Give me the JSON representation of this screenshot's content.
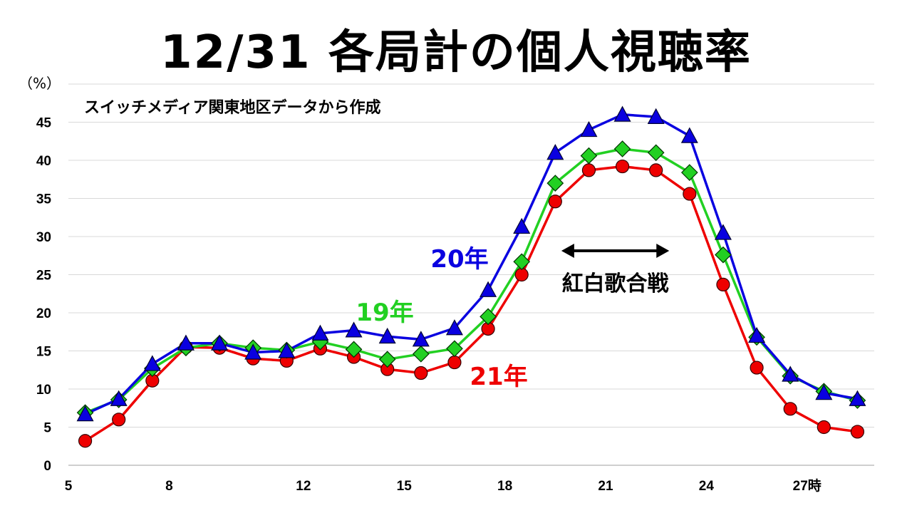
{
  "title": "12/31 各局計の個人視聴率",
  "unit": "（%）",
  "source": "スイッチメディア関東地区データから作成",
  "chart_data": {
    "type": "line",
    "x": [
      5.5,
      6.5,
      7.5,
      8.5,
      9.5,
      10.5,
      11.5,
      12.5,
      13.5,
      14.5,
      15.5,
      16.5,
      17.5,
      18.5,
      19.5,
      20.5,
      21.5,
      22.5,
      23.5,
      24.5,
      25.5,
      26.5,
      27.5,
      28.5
    ],
    "xlim": [
      5,
      29
    ],
    "x_ticks": [
      {
        "value": 5,
        "label": "5"
      },
      {
        "value": 8,
        "label": "8"
      },
      {
        "value": 12,
        "label": "12"
      },
      {
        "value": 15,
        "label": "15"
      },
      {
        "value": 18,
        "label": "18"
      },
      {
        "value": 21,
        "label": "21"
      },
      {
        "value": 24,
        "label": "24"
      },
      {
        "value": 27,
        "label": "27時"
      }
    ],
    "ylim": [
      0,
      50
    ],
    "y_ticks": [
      0,
      5,
      10,
      15,
      20,
      25,
      30,
      35,
      40,
      45
    ],
    "grid": true,
    "series": [
      {
        "name": "20年",
        "color": "#0a00e0",
        "marker": "triangle",
        "values": [
          6.7,
          8.7,
          13.3,
          16.0,
          16.0,
          14.8,
          15.0,
          17.3,
          17.7,
          16.9,
          16.5,
          18.0,
          23.0,
          31.3,
          41.0,
          44.0,
          46.0,
          45.7,
          43.2,
          30.5,
          17.0,
          11.9,
          9.5,
          8.7
        ]
      },
      {
        "name": "19年",
        "color": "#22d022",
        "marker": "diamond",
        "values": [
          6.9,
          8.6,
          12.7,
          15.4,
          16.0,
          15.4,
          15.1,
          16.2,
          15.2,
          13.9,
          14.6,
          15.3,
          19.5,
          26.7,
          37.0,
          40.6,
          41.5,
          41.0,
          38.4,
          27.6,
          16.8,
          11.7,
          9.7,
          8.5
        ]
      },
      {
        "name": "21年",
        "color": "#ee0000",
        "marker": "circle",
        "values": [
          3.2,
          6.0,
          11.1,
          15.5,
          15.4,
          14.0,
          13.7,
          15.3,
          14.2,
          12.6,
          12.1,
          13.5,
          17.9,
          25.0,
          34.6,
          38.7,
          39.2,
          38.7,
          35.6,
          23.7,
          12.8,
          7.4,
          5.0,
          4.4
        ]
      }
    ],
    "annotations": [
      {
        "text": "紅白歌合戦",
        "x_from": 20.0,
        "x_to": 23.0
      }
    ]
  }
}
